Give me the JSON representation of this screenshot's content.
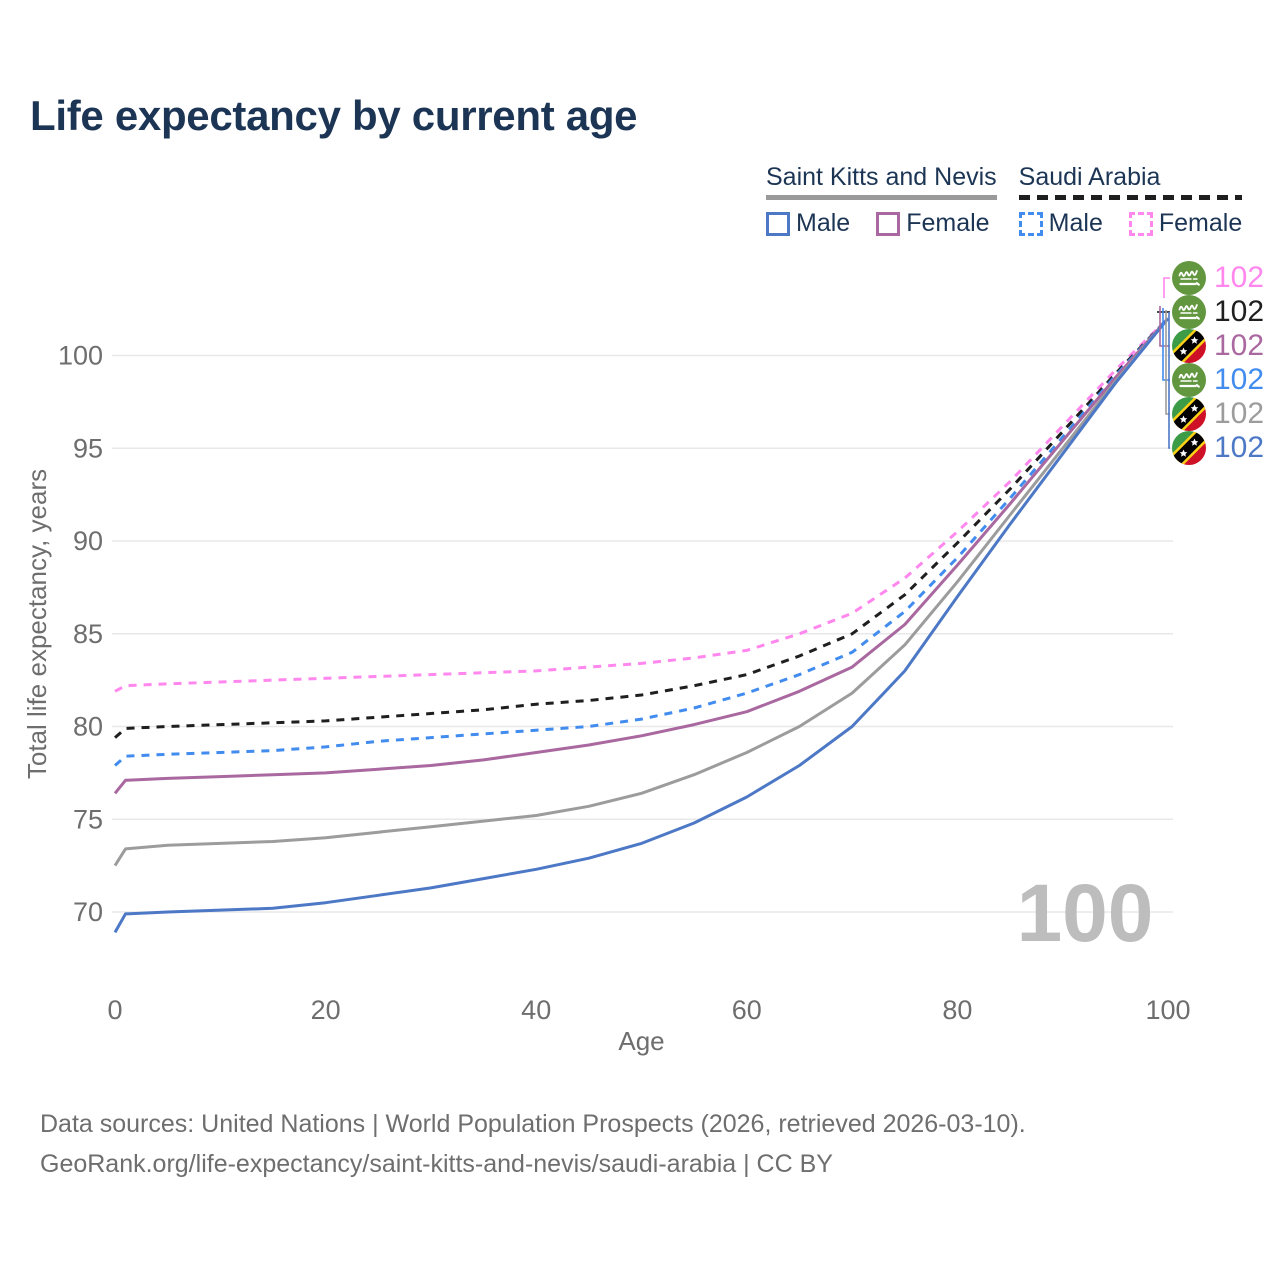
{
  "title": "Life expectancy by current age",
  "watermark_age": "100",
  "colors": {
    "navy_text": "#1c3555",
    "axis_text": "#6e6e6e",
    "gridline": "#e8e8e8",
    "watermark": "#bdbdbd",
    "skn_male": "#4c78c6",
    "skn_female": "#a9689f",
    "skn_total": "#9c9c9c",
    "sa_male": "#418cee",
    "sa_female": "#ff87ee",
    "sa_total": "#1f1f1f"
  },
  "legend": {
    "groups": [
      {
        "country": "Saint Kitts and Nevis",
        "underline_style": "solid",
        "items": [
          {
            "label": "Male",
            "color": "#4c78c6",
            "dashed": false
          },
          {
            "label": "Female",
            "color": "#a9689f",
            "dashed": false
          }
        ]
      },
      {
        "country": "Saudi Arabia",
        "underline_style": "dashed",
        "items": [
          {
            "label": "Male",
            "color": "#418cee",
            "dashed": true
          },
          {
            "label": "Female",
            "color": "#ff87ee",
            "dashed": true
          }
        ]
      }
    ]
  },
  "axes": {
    "y_title": "Total life expectancy, years",
    "x_title": "Age",
    "y_ticks": [
      70,
      75,
      80,
      85,
      90,
      95,
      100
    ],
    "x_ticks": [
      0,
      20,
      40,
      60,
      80,
      100
    ]
  },
  "end_labels": [
    {
      "flag": "saudi-arabia",
      "value": "102",
      "color": "#ff87ee",
      "series": "sa-female"
    },
    {
      "flag": "saudi-arabia",
      "value": "102",
      "color": "#1f1f1f",
      "series": "sa-total"
    },
    {
      "flag": "saint-kitts-and-nevis",
      "value": "102",
      "color": "#a9689f",
      "series": "skn-female"
    },
    {
      "flag": "saudi-arabia",
      "value": "102",
      "color": "#418cee",
      "series": "sa-male"
    },
    {
      "flag": "saint-kitts-and-nevis",
      "value": "102",
      "color": "#9c9c9c",
      "series": "skn-total"
    },
    {
      "flag": "saint-kitts-and-nevis",
      "value": "102",
      "color": "#4c78c6",
      "series": "skn-male"
    }
  ],
  "footer": {
    "line1": "Data sources: United Nations | World Population Prospects (2026, retrieved 2026-03-10).",
    "line2": "GeoRank.org/life-expectancy/saint-kitts-and-nevis/saudi-arabia | CC BY"
  },
  "chart_data": {
    "type": "line",
    "title": "Life expectancy by current age",
    "xlabel": "Age",
    "ylabel": "Total life expectancy, years",
    "xlim": [
      0,
      100
    ],
    "ylim": [
      68.5,
      103
    ],
    "grid": "horizontal",
    "legend_position": "top-right",
    "x": [
      0,
      1,
      5,
      10,
      15,
      20,
      25,
      30,
      35,
      40,
      45,
      50,
      55,
      60,
      65,
      70,
      75,
      80,
      85,
      90,
      95,
      100
    ],
    "series": [
      {
        "id": "sa-female",
        "name": "Saudi Arabia — Female",
        "country": "Saudi Arabia",
        "sex": "Female",
        "style": "dashed",
        "color": "#ff87ee",
        "values": [
          81.9,
          82.2,
          82.3,
          82.4,
          82.5,
          82.6,
          82.7,
          82.8,
          82.9,
          83.0,
          83.2,
          83.4,
          83.7,
          84.1,
          85.0,
          86.1,
          88.0,
          90.5,
          93.2,
          96.2,
          99.2,
          102.0
        ]
      },
      {
        "id": "sa-total",
        "name": "Saudi Arabia — Both sexes",
        "country": "Saudi Arabia",
        "sex": "Both",
        "style": "dashed",
        "color": "#1f1f1f",
        "values": [
          79.4,
          79.9,
          80.0,
          80.1,
          80.2,
          80.3,
          80.5,
          80.7,
          80.9,
          81.2,
          81.4,
          81.7,
          82.2,
          82.8,
          83.8,
          85.0,
          87.1,
          89.9,
          92.8,
          95.9,
          99.0,
          102.0
        ]
      },
      {
        "id": "sa-male",
        "name": "Saudi Arabia — Male",
        "country": "Saudi Arabia",
        "sex": "Male",
        "style": "dashed",
        "color": "#418cee",
        "values": [
          77.9,
          78.4,
          78.5,
          78.6,
          78.7,
          78.9,
          79.2,
          79.4,
          79.6,
          79.8,
          80.0,
          80.4,
          81.0,
          81.8,
          82.8,
          84.0,
          86.2,
          89.1,
          92.3,
          95.6,
          98.9,
          102.0
        ]
      },
      {
        "id": "skn-female",
        "name": "Saint Kitts and Nevis — Female",
        "country": "Saint Kitts and Nevis",
        "sex": "Female",
        "style": "solid",
        "color": "#a9689f",
        "values": [
          76.4,
          77.1,
          77.2,
          77.3,
          77.4,
          77.5,
          77.7,
          77.9,
          78.2,
          78.6,
          79.0,
          79.5,
          80.1,
          80.8,
          81.9,
          83.2,
          85.5,
          88.7,
          92.0,
          95.4,
          98.8,
          102.0
        ]
      },
      {
        "id": "skn-total",
        "name": "Saint Kitts and Nevis — Both sexes",
        "country": "Saint Kitts and Nevis",
        "sex": "Both",
        "style": "solid",
        "color": "#9c9c9c",
        "values": [
          72.5,
          73.4,
          73.6,
          73.7,
          73.8,
          74.0,
          74.3,
          74.6,
          74.9,
          75.2,
          75.7,
          76.4,
          77.4,
          78.6,
          80.0,
          81.8,
          84.4,
          87.8,
          91.4,
          95.0,
          98.6,
          102.0
        ]
      },
      {
        "id": "skn-male",
        "name": "Saint Kitts and Nevis — Male",
        "country": "Saint Kitts and Nevis",
        "sex": "Male",
        "style": "solid",
        "color": "#4c78c6",
        "values": [
          68.9,
          69.9,
          70.0,
          70.1,
          70.2,
          70.5,
          70.9,
          71.3,
          71.8,
          72.3,
          72.9,
          73.7,
          74.8,
          76.2,
          77.9,
          80.0,
          83.0,
          87.0,
          90.9,
          94.7,
          98.5,
          102.0
        ]
      }
    ]
  }
}
